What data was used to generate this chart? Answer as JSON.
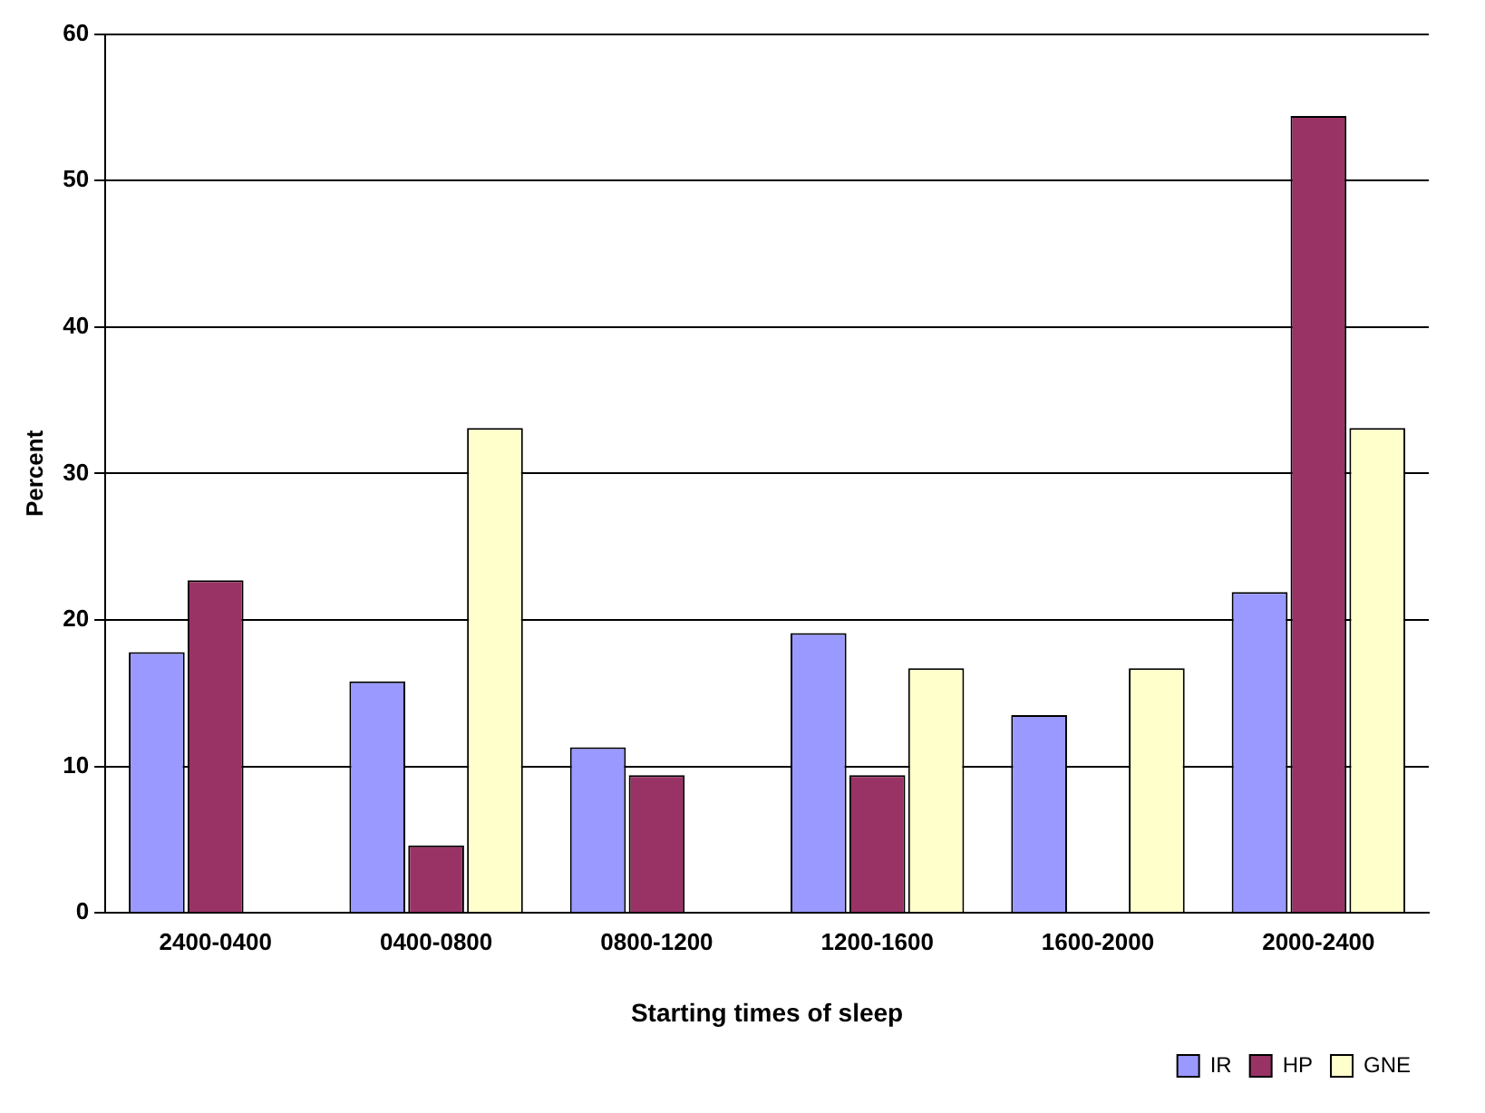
{
  "chart_data": {
    "type": "bar",
    "xlabel": "Starting times of sleep",
    "ylabel": "Percent",
    "categories": [
      "2400-0400",
      "0400-0800",
      "0800-1200",
      "1200-1600",
      "1600-2000",
      "2000-2400"
    ],
    "series": [
      {
        "name": "IR",
        "color": "#9999ff",
        "values": [
          17.8,
          15.8,
          11.3,
          19.1,
          13.5,
          21.9
        ]
      },
      {
        "name": "HP",
        "color": "#993366",
        "values": [
          22.7,
          4.6,
          9.4,
          9.4,
          0,
          54.4
        ]
      },
      {
        "name": "GNE",
        "color": "#ffffcc",
        "values": [
          0,
          33.1,
          0,
          16.7,
          16.7,
          33.1
        ]
      }
    ],
    "ylim": [
      0,
      60
    ],
    "yticks": [
      0,
      10,
      20,
      30,
      40,
      50,
      60
    ],
    "grid": "y",
    "legend": "bottom right"
  }
}
